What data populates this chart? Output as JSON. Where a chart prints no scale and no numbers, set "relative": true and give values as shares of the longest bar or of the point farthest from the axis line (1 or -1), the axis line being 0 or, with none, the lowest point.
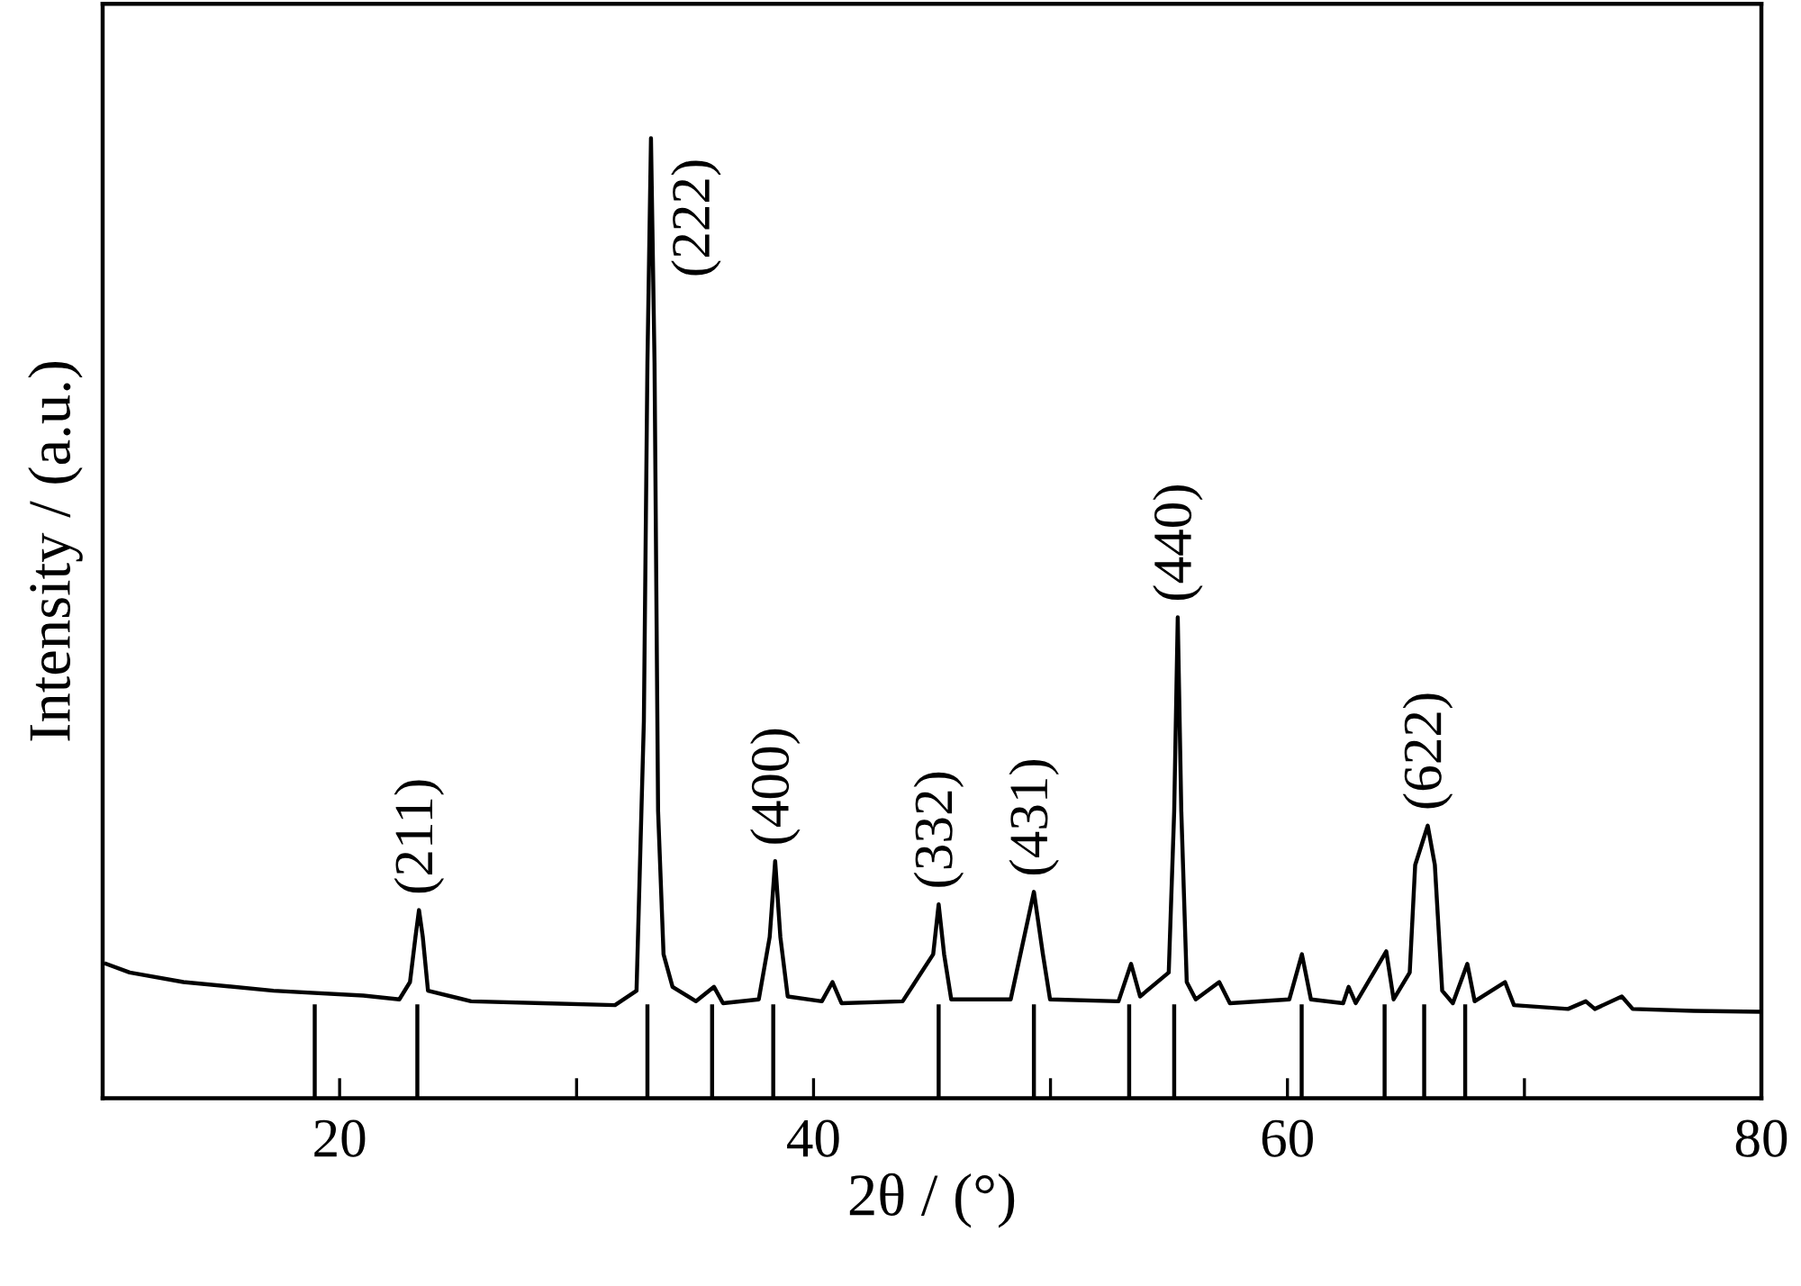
{
  "chart_data": {
    "type": "line",
    "xlabel": "2θ / (°)",
    "ylabel": "Intensity / (a.u.)",
    "relative": true,
    "tick_labels": "x",
    "grid": false,
    "legend": false,
    "xlim": [
      10,
      80
    ],
    "xticks": [
      20,
      {
        "value": 30,
        "label": null
      },
      40,
      {
        "value": 50,
        "label": null
      },
      60,
      {
        "value": 70,
        "label": null
      },
      80
    ],
    "series": [
      {
        "color": "#000000",
        "x": [
          10.15,
          11.14,
          13.41,
          17.21,
          21.0,
          22.52,
          22.97,
          23.2,
          23.35,
          23.51,
          23.73,
          25.55,
          28.59,
          31.62,
          32.53,
          32.84,
          32.99,
          33.14,
          33.29,
          33.44,
          33.67,
          34.05,
          35.04,
          35.8,
          36.18,
          37.69,
          38.15,
          38.38,
          38.6,
          38.91,
          40.35,
          40.8,
          41.18,
          43.76,
          45.05,
          45.28,
          45.51,
          45.81,
          48.32,
          49.3,
          49.68,
          49.98,
          52.87,
          53.4,
          53.78,
          54.99,
          55.22,
          55.37,
          55.52,
          55.75,
          56.13,
          57.12,
          57.57,
          60.08,
          60.61,
          60.99,
          62.35,
          62.58,
          62.88,
          64.17,
          64.48,
          65.16,
          65.39,
          65.92,
          66.22,
          66.53,
          66.98,
          67.59,
          67.9,
          69.18,
          69.56,
          71.84,
          72.59,
          72.97,
          74.11,
          74.57,
          77.15,
          80.0
        ],
        "values": [
          0.14,
          0.131,
          0.121,
          0.112,
          0.107,
          0.103,
          0.121,
          0.168,
          0.196,
          0.168,
          0.112,
          0.101,
          0.099,
          0.097,
          0.112,
          0.393,
          0.766,
          1.0,
          0.766,
          0.299,
          0.15,
          0.116,
          0.101,
          0.116,
          0.099,
          0.103,
          0.168,
          0.247,
          0.168,
          0.106,
          0.101,
          0.121,
          0.099,
          0.101,
          0.15,
          0.202,
          0.15,
          0.103,
          0.103,
          0.215,
          0.15,
          0.103,
          0.101,
          0.14,
          0.106,
          0.131,
          0.299,
          0.501,
          0.299,
          0.121,
          0.103,
          0.121,
          0.099,
          0.103,
          0.15,
          0.103,
          0.099,
          0.116,
          0.099,
          0.153,
          0.103,
          0.131,
          0.243,
          0.284,
          0.243,
          0.112,
          0.099,
          0.14,
          0.101,
          0.121,
          0.097,
          0.093,
          0.101,
          0.093,
          0.106,
          0.093,
          0.091,
          0.09
        ]
      }
    ],
    "ref_lines": [
      {
        "axis": "x",
        "value": 18.95,
        "color": "#000000"
      },
      {
        "axis": "x",
        "value": 23.28,
        "color": "#000000"
      },
      {
        "axis": "x",
        "value": 32.99,
        "color": "#000000"
      },
      {
        "axis": "x",
        "value": 35.72,
        "color": "#000000"
      },
      {
        "axis": "x",
        "value": 38.3,
        "color": "#000000"
      },
      {
        "axis": "x",
        "value": 45.28,
        "color": "#000000"
      },
      {
        "axis": "x",
        "value": 49.3,
        "color": "#000000"
      },
      {
        "axis": "x",
        "value": 53.32,
        "color": "#000000"
      },
      {
        "axis": "x",
        "value": 55.22,
        "color": "#000000"
      },
      {
        "axis": "x",
        "value": 60.6,
        "color": "#000000"
      },
      {
        "axis": "x",
        "value": 64.1,
        "color": "#000000"
      },
      {
        "axis": "x",
        "value": 65.77,
        "color": "#000000"
      },
      {
        "axis": "x",
        "value": 67.5,
        "color": "#000000"
      }
    ],
    "annotations": [
      {
        "text": "(211)",
        "x": 23.35,
        "y": 0.196
      },
      {
        "text": "(222)",
        "x": 33.14,
        "y": 1.0
      },
      {
        "text": "(400)",
        "x": 38.38,
        "y": 0.247
      },
      {
        "text": "(332)",
        "x": 45.28,
        "y": 0.202
      },
      {
        "text": "(431)",
        "x": 49.3,
        "y": 0.215
      },
      {
        "text": "(440)",
        "x": 55.37,
        "y": 0.501
      },
      {
        "text": "(622)",
        "x": 65.92,
        "y": 0.284
      }
    ]
  }
}
